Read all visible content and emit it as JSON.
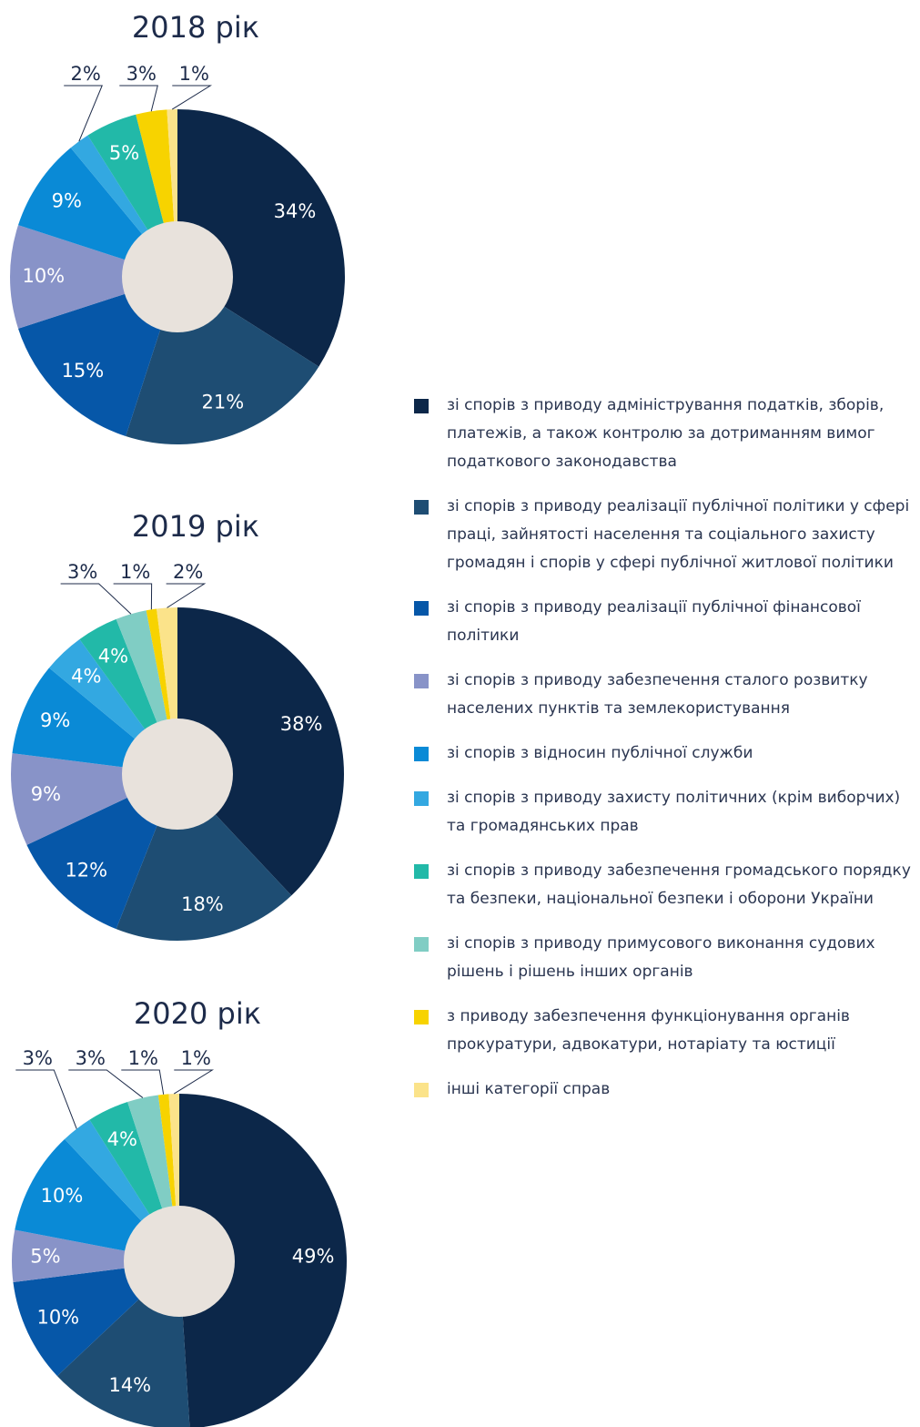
{
  "chart_data": [
    {
      "type": "pie",
      "title": "2018 рік",
      "values": [
        34,
        21,
        15,
        10,
        9,
        2,
        5,
        null,
        3,
        1
      ],
      "value_labels": [
        "34%",
        "21%",
        "15%",
        "10%",
        "9%",
        "2%",
        "5%",
        null,
        "3%",
        "1%"
      ]
    },
    {
      "type": "pie",
      "title": "2019 рік",
      "values": [
        38,
        18,
        12,
        9,
        9,
        4,
        4,
        3,
        1,
        2
      ],
      "value_labels": [
        "38%",
        "18%",
        "12%",
        "9%",
        "9%",
        "4%",
        "4%",
        "3%",
        "1%",
        "2%"
      ]
    },
    {
      "type": "pie",
      "title": "2020 рік",
      "values": [
        49,
        14,
        10,
        5,
        10,
        3,
        4,
        3,
        1,
        1
      ],
      "value_labels": [
        "49%",
        "14%",
        "10%",
        "5%",
        "10%",
        "3%",
        "4%",
        "3%",
        "1%",
        "1%"
      ]
    }
  ],
  "legend": [
    {
      "name": "зі спорів з приводу адміністрування податків, зборів, платежів, а також контролю за дотриманням вимог податкового законодавства",
      "color": "#0c2749"
    },
    {
      "name": "зі спорів з приводу реалізації публічної політики у сфері праці, зайнятості населення та соціального захисту громадян і спорів у сфері публічної житлової політики",
      "color": "#1e4d73"
    },
    {
      "name": "зі спорів з приводу реалізації публічної фінансової політики",
      "color": "#0657a8"
    },
    {
      "name": "зі спорів з приводу забезпечення сталого розвитку населених пунктів та землекористування",
      "color": "#8893c8"
    },
    {
      "name": "зі спорів з відносин публічної служби",
      "color": "#0a8ad6"
    },
    {
      "name": "зі спорів з приводу захисту політичних (крім виборчих) та громадянських прав",
      "color": "#33a8e1"
    },
    {
      "name": "зі спорів з приводу забезпечення громадського порядку та безпеки, національної безпеки і оборони України",
      "color": "#22b9a8"
    },
    {
      "name": "зі спорів з приводу примусового виконання судових рішень і рішень інших органів",
      "color": "#80cdc4"
    },
    {
      "name": "з приводу забезпечення функціонування органів прокуратури, адвокатури, нотаріату та юстиції",
      "color": "#f7d300"
    },
    {
      "name": "інші категорії справ",
      "color": "#fbe38a"
    }
  ]
}
